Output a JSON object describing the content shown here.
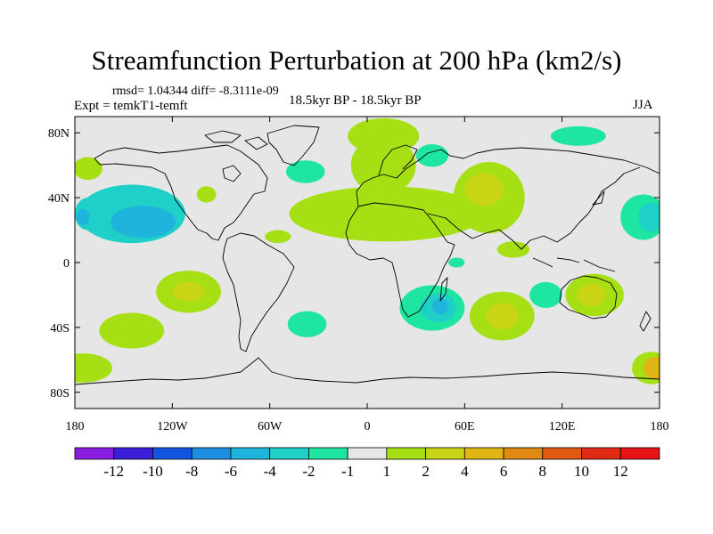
{
  "chart_data": {
    "type": "heatmap",
    "title": "Streamfunction Perturbation at 200 hPa (km2/s)",
    "stats_label": "rmsd= 1.04344 diff= -8.3111e-09",
    "left_label": "Expt = temkT1-temft",
    "center_label": "18.5kyr BP - 18.5kyr BP",
    "right_label": "JJA",
    "x_axis": {
      "range": [
        -180,
        180
      ],
      "ticks": [
        {
          "value": -180,
          "label": "180"
        },
        {
          "value": -120,
          "label": "120W"
        },
        {
          "value": -60,
          "label": "60W"
        },
        {
          "value": 0,
          "label": "0"
        },
        {
          "value": 60,
          "label": "60E"
        },
        {
          "value": 120,
          "label": "120E"
        },
        {
          "value": 180,
          "label": "180"
        }
      ]
    },
    "y_axis": {
      "range": [
        -90,
        90
      ],
      "ticks": [
        {
          "value": 80,
          "label": "80N"
        },
        {
          "value": 40,
          "label": "40N"
        },
        {
          "value": 0,
          "label": "0"
        },
        {
          "value": -40,
          "label": "40S"
        },
        {
          "value": -80,
          "label": "80S"
        }
      ]
    },
    "colorbar": {
      "labels": [
        "-12",
        "-10",
        "-8",
        "-6",
        "-4",
        "-2",
        "-1",
        "1",
        "2",
        "4",
        "6",
        "8",
        "10",
        "12"
      ],
      "colors": [
        "#8a1ee0",
        "#3b1ed8",
        "#1455e0",
        "#1e8fe0",
        "#1eb4dc",
        "#1ed0c8",
        "#1ee6a0",
        "#e6e6e6",
        "#a6e014",
        "#c8d414",
        "#e0b414",
        "#e08a14",
        "#e05a14",
        "#e02a14",
        "#e61414"
      ]
    },
    "anomaly_regions": [
      {
        "lon": -145,
        "lat": 30,
        "rx": 33,
        "ry": 18,
        "level": "-2"
      },
      {
        "lon": -172,
        "lat": 30,
        "rx": 8,
        "ry": 10,
        "level": "-2"
      },
      {
        "lon": -138,
        "lat": 25,
        "rx": 20,
        "ry": 10,
        "level": "-4"
      },
      {
        "lon": -175,
        "lat": 28,
        "rx": 4,
        "ry": 5,
        "level": "-4"
      },
      {
        "lon": -172,
        "lat": 58,
        "rx": 9,
        "ry": 7,
        "level": "1"
      },
      {
        "lon": -99,
        "lat": 42,
        "rx": 6,
        "ry": 5,
        "level": "1"
      },
      {
        "lon": -110,
        "lat": -18,
        "rx": 20,
        "ry": 13,
        "level": "1"
      },
      {
        "lon": -110,
        "lat": -18,
        "rx": 10,
        "ry": 6,
        "level": "2"
      },
      {
        "lon": -145,
        "lat": -42,
        "rx": 20,
        "ry": 11,
        "level": "1"
      },
      {
        "lon": -175,
        "lat": -65,
        "rx": 18,
        "ry": 9,
        "level": "1"
      },
      {
        "lon": -37,
        "lat": -38,
        "rx": 12,
        "ry": 8,
        "level": "-1"
      },
      {
        "lon": -55,
        "lat": 16,
        "rx": 8,
        "ry": 4,
        "level": "1"
      },
      {
        "lon": -38,
        "lat": 56,
        "rx": 12,
        "ry": 7,
        "level": "-1"
      },
      {
        "lon": 10,
        "lat": 78,
        "rx": 22,
        "ry": 11,
        "level": "1"
      },
      {
        "lon": 10,
        "lat": 60,
        "rx": 20,
        "ry": 18,
        "level": "1"
      },
      {
        "lon": 12,
        "lat": 30,
        "rx": 60,
        "ry": 17,
        "level": "1"
      },
      {
        "lon": 75,
        "lat": 40,
        "rx": 22,
        "ry": 22,
        "level": "1"
      },
      {
        "lon": 72,
        "lat": 45,
        "rx": 12,
        "ry": 10,
        "level": "2"
      },
      {
        "lon": 40,
        "lat": 66,
        "rx": 10,
        "ry": 7,
        "level": "-1"
      },
      {
        "lon": 130,
        "lat": 78,
        "rx": 17,
        "ry": 6,
        "level": "-1"
      },
      {
        "lon": 90,
        "lat": 8,
        "rx": 10,
        "ry": 5,
        "level": "1"
      },
      {
        "lon": 55,
        "lat": 0,
        "rx": 5,
        "ry": 3,
        "level": "-1"
      },
      {
        "lon": 40,
        "lat": -28,
        "rx": 20,
        "ry": 14,
        "level": "-1"
      },
      {
        "lon": 44,
        "lat": -28,
        "rx": 11,
        "ry": 9,
        "level": "-2"
      },
      {
        "lon": 45,
        "lat": -27,
        "rx": 5,
        "ry": 5,
        "level": "-4"
      },
      {
        "lon": 83,
        "lat": -33,
        "rx": 20,
        "ry": 15,
        "level": "1"
      },
      {
        "lon": 83,
        "lat": -33,
        "rx": 10,
        "ry": 8,
        "level": "2"
      },
      {
        "lon": 140,
        "lat": -20,
        "rx": 18,
        "ry": 13,
        "level": "1"
      },
      {
        "lon": 138,
        "lat": -20,
        "rx": 9,
        "ry": 7,
        "level": "2"
      },
      {
        "lon": 110,
        "lat": -20,
        "rx": 10,
        "ry": 8,
        "level": "-1"
      },
      {
        "lon": 170,
        "lat": 28,
        "rx": 14,
        "ry": 14,
        "level": "-1"
      },
      {
        "lon": 175,
        "lat": 28,
        "rx": 8,
        "ry": 9,
        "level": "-2"
      },
      {
        "lon": 175,
        "lat": -65,
        "rx": 12,
        "ry": 10,
        "level": "1"
      },
      {
        "lon": 178,
        "lat": -65,
        "rx": 8,
        "ry": 7,
        "level": "4"
      }
    ]
  }
}
